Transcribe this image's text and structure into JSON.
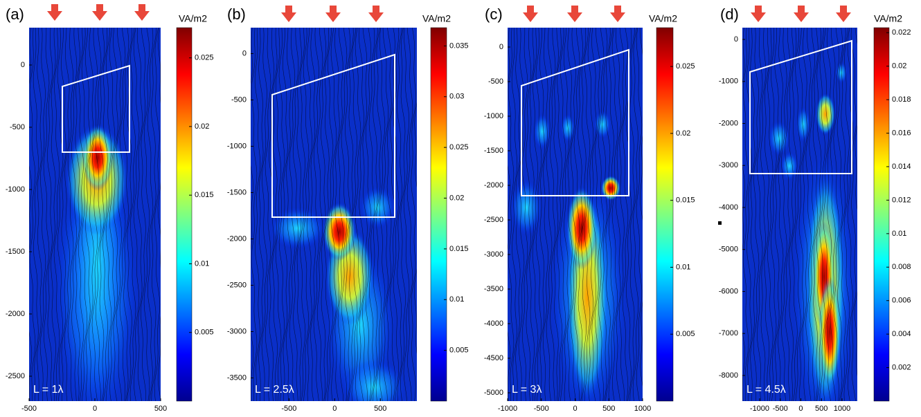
{
  "chart_data": [
    {
      "type": "heatmap",
      "title": "(a)",
      "annotation": "L = 1λ",
      "colorbar_label": "VA/m2",
      "xlim": [
        -500,
        500
      ],
      "xticks": [
        -500,
        0,
        500
      ],
      "ylim": [
        -2700,
        300
      ],
      "yticks": [
        0,
        -500,
        -1000,
        -1500,
        -2000,
        -2500
      ],
      "clim": [
        0,
        0.0272
      ],
      "cticks": [
        0.005,
        0.01,
        0.015,
        0.02,
        0.025
      ]
    },
    {
      "type": "heatmap",
      "title": "(b)",
      "annotation": "L = 2.5λ",
      "colorbar_label": "VA/m2",
      "xlim": [
        -920,
        900
      ],
      "xticks": [
        -500,
        0,
        500
      ],
      "ylim": [
        -3750,
        280
      ],
      "yticks": [
        0,
        -500,
        -1000,
        -1500,
        -2000,
        -2500,
        -3000,
        -3500
      ],
      "clim": [
        0,
        0.0368
      ],
      "cticks": [
        0.005,
        0.01,
        0.015,
        0.02,
        0.025,
        0.03,
        0.035
      ]
    },
    {
      "type": "heatmap",
      "title": "(c)",
      "annotation": "L = 3λ",
      "colorbar_label": "VA/m2",
      "xlim": [
        -1000,
        1000
      ],
      "xticks": [
        -1000,
        -500,
        0,
        500,
        1000
      ],
      "ylim": [
        -5120,
        280
      ],
      "yticks": [
        0,
        -500,
        -1000,
        -1500,
        -2000,
        -2500,
        -3000,
        -3500,
        -4000,
        -4500,
        -5000
      ],
      "clim": [
        0,
        0.0279
      ],
      "cticks": [
        0.005,
        0.01,
        0.015,
        0.02,
        0.025
      ]
    },
    {
      "type": "heatmap",
      "title": "(d)",
      "annotation": "L = 4.5λ",
      "colorbar_label": "VA/m2",
      "xlim": [
        -1420,
        1370
      ],
      "xticks": [
        -1000,
        -500,
        0,
        500,
        1000
      ],
      "ylim": [
        -8610,
        280
      ],
      "yticks": [
        0,
        -1000,
        -2000,
        -3000,
        -4000,
        -5000,
        -6000,
        -7000,
        -8000
      ],
      "clim": [
        0,
        0.0223
      ],
      "cticks": [
        0.002,
        0.004,
        0.006,
        0.008,
        0.01,
        0.012,
        0.014,
        0.016,
        0.018,
        0.02,
        0.022
      ]
    }
  ]
}
